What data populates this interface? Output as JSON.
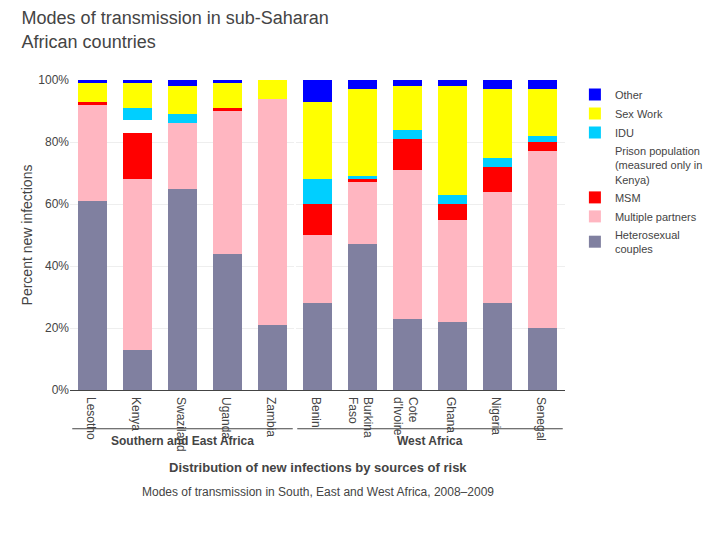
{
  "chart_data": {
    "type": "bar",
    "stacked": true,
    "title": "Modes of transmission in sub-Saharan\nAfrican countries",
    "subtitle": "Distribution of new infections by sources of risk",
    "ylabel": "Percent new infections",
    "categories": [
      "Lesotho",
      "Kenya",
      "Swaziland",
      "Uganda",
      "Zambia",
      "Benin",
      "Burkina\nFaso",
      "Cote\nd'Ivoire",
      "Ghana",
      "Nigeria",
      "Senegal"
    ],
    "series": [
      {
        "name": "Heterosexual\ncouples",
        "color": "#8080A0",
        "values": [
          61,
          13,
          65,
          44,
          21,
          28,
          47,
          23,
          22,
          28,
          20
        ]
      },
      {
        "name": "Multiple partners",
        "color": "#FFB6C1",
        "values": [
          31,
          55,
          21,
          46,
          73,
          22,
          20,
          48,
          33,
          36,
          57
        ]
      },
      {
        "name": "MSM",
        "color": "#FF0000",
        "values": [
          1,
          15,
          0,
          1,
          0,
          10,
          1,
          10,
          5,
          8,
          3
        ]
      },
      {
        "name": "Prison population\n(measured only in\nKenya)",
        "color": "#FFFFFF",
        "values": [
          0,
          4,
          0,
          0,
          0,
          0,
          0,
          0,
          0,
          0,
          0
        ]
      },
      {
        "name": "IDU",
        "color": "#00CFFF",
        "values": [
          0,
          4,
          3,
          0,
          0,
          8,
          1,
          3,
          3,
          3,
          2
        ]
      },
      {
        "name": "Sex Work",
        "color": "#FFFF00",
        "values": [
          6,
          8,
          9,
          8,
          6,
          25,
          28,
          14,
          35,
          22,
          15
        ]
      },
      {
        "name": "Other",
        "color": "#0000FF",
        "values": [
          1,
          1,
          2,
          1,
          0,
          7,
          3,
          2,
          2,
          3,
          3
        ]
      }
    ],
    "annotations": [
      {
        "text": "Southern and East Africa",
        "categories": [
          "Lesotho",
          "Kenya",
          "Swaziland",
          "Uganda",
          "Zambia"
        ]
      },
      {
        "text": "West Africa",
        "categories": [
          "Benin",
          "Burkina\nFaso",
          "Cote\nd'Ivoire",
          "Ghana",
          "Nigeria",
          "Senegal"
        ]
      },
      {
        "text": "Modes of transmission in South, East and West Africa, 2008–2009"
      }
    ],
    "ylim": [
      0,
      100
    ],
    "yticks": [
      {
        "value": 0,
        "label": "0%"
      },
      {
        "value": 20,
        "label": "20%"
      },
      {
        "value": 40,
        "label": "40%"
      },
      {
        "value": 60,
        "label": "60%"
      },
      {
        "value": 80,
        "label": "80%"
      },
      {
        "value": 100,
        "label": "100%"
      }
    ],
    "grid": true,
    "legend": "right"
  }
}
